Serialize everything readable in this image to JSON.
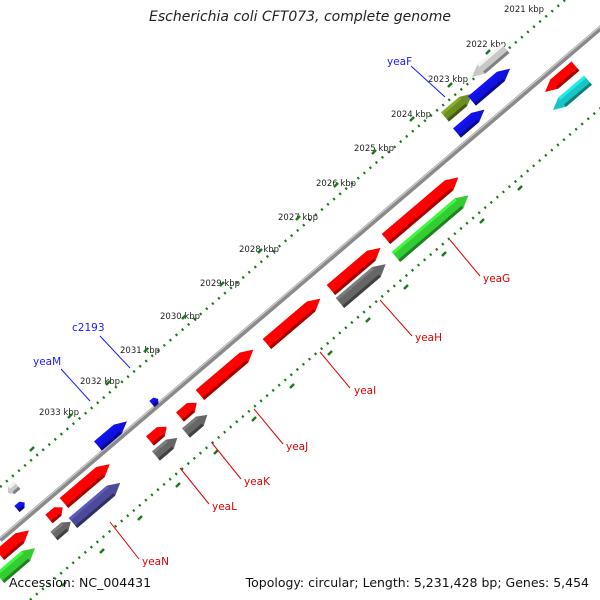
{
  "title": "Escherichia coli CFT073, complete genome",
  "footer": {
    "accession": "Accession: NC_004431",
    "topology": "Topology: circular; Length: 5,231,428 bp; Genes: 5,454"
  },
  "kbp_ticks": [
    "2021 kbp",
    "2022 kbp",
    "2023 kbp",
    "2024 kbp",
    "2025 kbp",
    "2026 kbp",
    "2027 kbp",
    "2028 kbp",
    "2029 kbp",
    "2030 kbp",
    "2031 kbp",
    "2032 kbp",
    "2033 kbp"
  ],
  "gene_labels": {
    "outer": [
      "yeaF",
      "c2193",
      "yeaM"
    ],
    "inner": [
      "yeaG",
      "yeaH",
      "yeaI",
      "yeaJ",
      "yeaK",
      "yeaL",
      "yeaN"
    ]
  },
  "colors": {
    "outer_label": "#1a1aff",
    "inner_label": "#e00000",
    "tick": "#1a7a1a",
    "backbone": "#8a8a8a",
    "red": "#ff0000",
    "blue": "#1010e0",
    "green": "#33cc33",
    "gray": "#666666",
    "lightgray": "#c8c8c8",
    "olive": "#6b8e23",
    "cyan": "#19c4c4",
    "slate": "#4b4b9a"
  }
}
